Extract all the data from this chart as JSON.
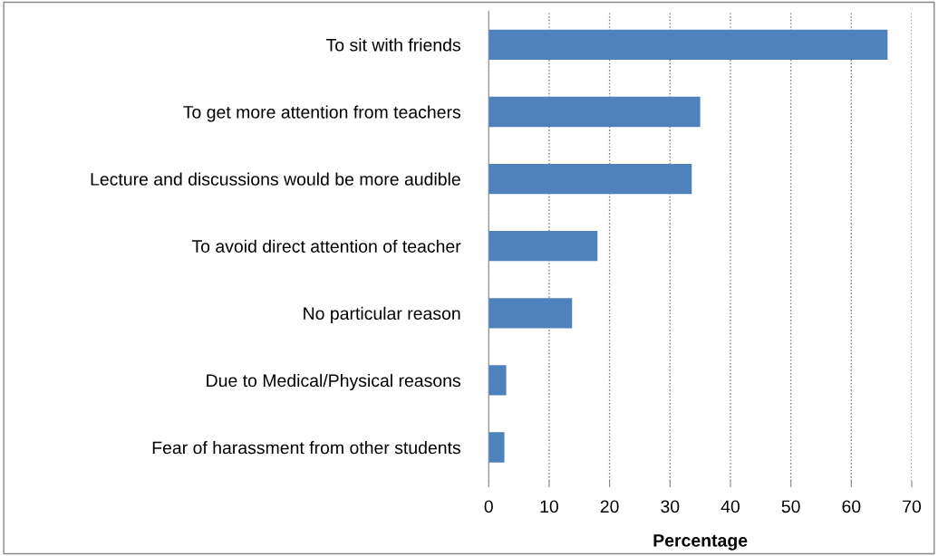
{
  "chart_data": {
    "type": "bar",
    "orientation": "horizontal",
    "xlabel": "Percentage",
    "categories": [
      "To sit with friends",
      "To get more attention from teachers",
      "Lecture and discussions would be more audible",
      "To avoid direct attention of teacher",
      "No particular reason",
      "Due to Medical/Physical reasons",
      "Fear of harassment from other students"
    ],
    "values": [
      66,
      35,
      33.6,
      18,
      13.8,
      2.9,
      2.6
    ],
    "color": "#4f81bd",
    "xlim": [
      0,
      70
    ],
    "xticks": [
      0,
      10,
      20,
      30,
      40,
      50,
      60,
      70
    ],
    "grid": "x"
  }
}
